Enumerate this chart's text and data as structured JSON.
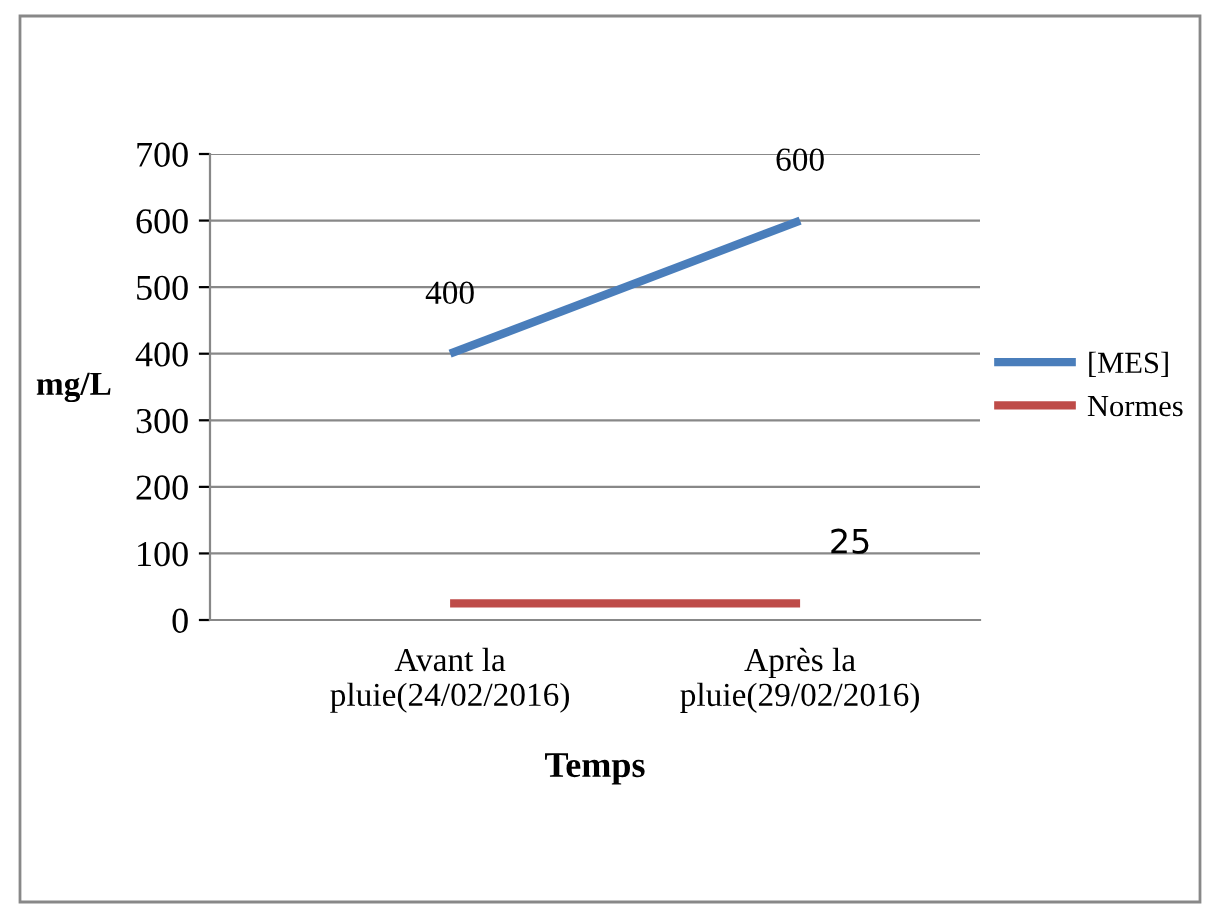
{
  "chart_data": {
    "type": "line",
    "xlabel": "Temps",
    "ylabel": "mg/L",
    "categories": [
      "Avant la\npluie(24/02/2016)",
      "Après la\npluie(29/02/2016)"
    ],
    "series": [
      {
        "name": "[MES]",
        "color": "#4a7ebb",
        "values": [
          400,
          600
        ],
        "value_labels": [
          "400",
          "600"
        ]
      },
      {
        "name": "Normes",
        "color": "#be4b48",
        "values": [
          25,
          25
        ],
        "value_labels": [
          null,
          "25"
        ]
      }
    ],
    "ylim": [
      0,
      700
    ],
    "yticks": [
      0,
      100,
      200,
      300,
      400,
      500,
      600,
      700
    ],
    "grid": "y",
    "legend": "right",
    "marker": "none",
    "line_style": "solid"
  }
}
